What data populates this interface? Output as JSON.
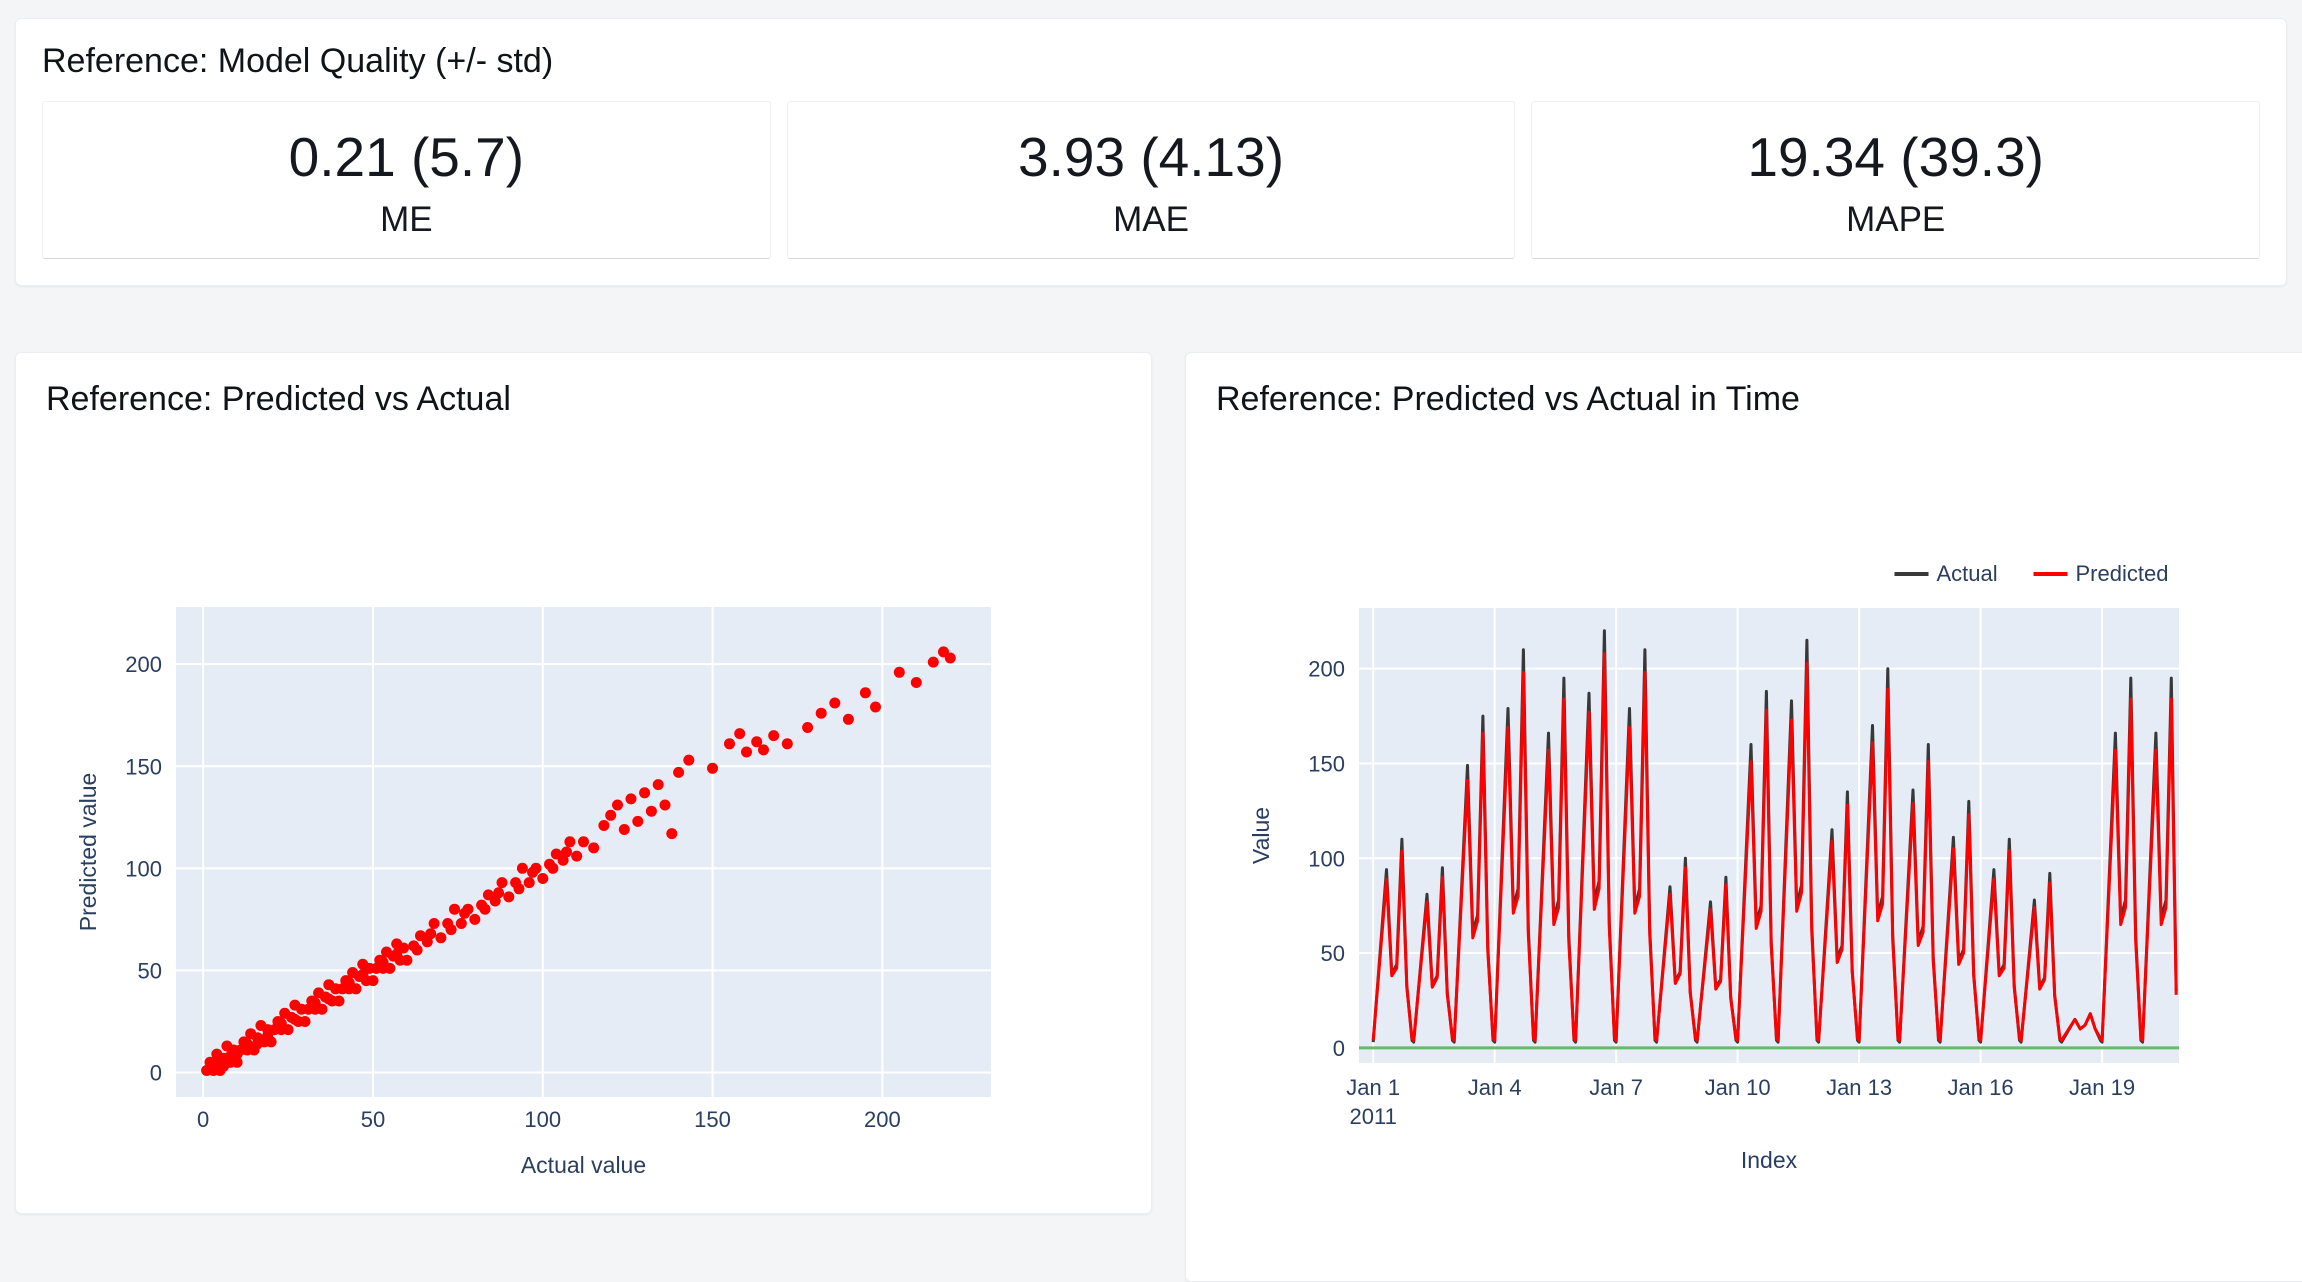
{
  "metrics_panel": {
    "title": "Reference: Model Quality (+/- std)",
    "items": [
      {
        "value": "0.21 (5.7)",
        "label": "ME"
      },
      {
        "value": "3.93 (4.13)",
        "label": "MAE"
      },
      {
        "value": "19.34 (39.3)",
        "label": "MAPE"
      }
    ]
  },
  "scatter_panel": {
    "title": "Reference: Predicted vs Actual"
  },
  "timeseries_panel": {
    "title": "Reference: Predicted vs Actual in Time"
  },
  "colors": {
    "plot_bg": "#e5ecf6",
    "grid": "#ffffff",
    "tick_text": "#2a3f5f",
    "marker_red": "#ff0000",
    "actual_line": "#383838",
    "predicted_line": "#ff0000",
    "zero_line_green": "#4caf50"
  },
  "chart_data": [
    {
      "type": "scatter",
      "title": "Reference: Predicted vs Actual",
      "xlabel": "Actual value",
      "ylabel": "Predicted value",
      "xlim": [
        -8,
        232
      ],
      "ylim": [
        -12,
        228
      ],
      "xticks": [
        0,
        50,
        100,
        150,
        200
      ],
      "yticks": [
        0,
        50,
        100,
        150,
        200
      ],
      "grid": true,
      "marker_color": "#ff0000",
      "points": [
        [
          1,
          1
        ],
        [
          2,
          5
        ],
        [
          2,
          2
        ],
        [
          3,
          1
        ],
        [
          4,
          9
        ],
        [
          4,
          4
        ],
        [
          5,
          1
        ],
        [
          6,
          7
        ],
        [
          6,
          3
        ],
        [
          7,
          13
        ],
        [
          8,
          5
        ],
        [
          8,
          8
        ],
        [
          9,
          11
        ],
        [
          10,
          5
        ],
        [
          10,
          9
        ],
        [
          11,
          11
        ],
        [
          12,
          15
        ],
        [
          13,
          11
        ],
        [
          13,
          14
        ],
        [
          14,
          19
        ],
        [
          15,
          11
        ],
        [
          16,
          17
        ],
        [
          16,
          14
        ],
        [
          17,
          23
        ],
        [
          18,
          15
        ],
        [
          19,
          21
        ],
        [
          19,
          18
        ],
        [
          20,
          15
        ],
        [
          21,
          21
        ],
        [
          22,
          25
        ],
        [
          23,
          21
        ],
        [
          23,
          24
        ],
        [
          24,
          29
        ],
        [
          25,
          21
        ],
        [
          26,
          27
        ],
        [
          27,
          33
        ],
        [
          27,
          26
        ],
        [
          28,
          25
        ],
        [
          29,
          31
        ],
        [
          30,
          25
        ],
        [
          31,
          31
        ],
        [
          32,
          35
        ],
        [
          33,
          31
        ],
        [
          33,
          34
        ],
        [
          34,
          39
        ],
        [
          35,
          31
        ],
        [
          36,
          37
        ],
        [
          37,
          43
        ],
        [
          37,
          36
        ],
        [
          38,
          35
        ],
        [
          39,
          41
        ],
        [
          40,
          35
        ],
        [
          41,
          41
        ],
        [
          42,
          45
        ],
        [
          43,
          41
        ],
        [
          43,
          44
        ],
        [
          44,
          49
        ],
        [
          45,
          41
        ],
        [
          46,
          47
        ],
        [
          47,
          53
        ],
        [
          47,
          48
        ],
        [
          48,
          45
        ],
        [
          49,
          51
        ],
        [
          50,
          45
        ],
        [
          51,
          51
        ],
        [
          52,
          55
        ],
        [
          53,
          51
        ],
        [
          53,
          54
        ],
        [
          54,
          59
        ],
        [
          55,
          51
        ],
        [
          56,
          57
        ],
        [
          57,
          63
        ],
        [
          57,
          58
        ],
        [
          58,
          55
        ],
        [
          59,
          61
        ],
        [
          60,
          55
        ],
        [
          62,
          62
        ],
        [
          63,
          60
        ],
        [
          64,
          67
        ],
        [
          66,
          64
        ],
        [
          67,
          68
        ],
        [
          68,
          73
        ],
        [
          70,
          66
        ],
        [
          72,
          73
        ],
        [
          73,
          70
        ],
        [
          74,
          80
        ],
        [
          76,
          73
        ],
        [
          77,
          78
        ],
        [
          78,
          80
        ],
        [
          80,
          75
        ],
        [
          82,
          82
        ],
        [
          83,
          80
        ],
        [
          84,
          87
        ],
        [
          86,
          84
        ],
        [
          87,
          88
        ],
        [
          88,
          93
        ],
        [
          90,
          86
        ],
        [
          92,
          93
        ],
        [
          93,
          90
        ],
        [
          94,
          100
        ],
        [
          96,
          93
        ],
        [
          97,
          98
        ],
        [
          98,
          100
        ],
        [
          100,
          95
        ],
        [
          102,
          102
        ],
        [
          103,
          100
        ],
        [
          104,
          107
        ],
        [
          106,
          104
        ],
        [
          107,
          108
        ],
        [
          108,
          113
        ],
        [
          110,
          106
        ],
        [
          112,
          113
        ],
        [
          115,
          110
        ],
        [
          118,
          121
        ],
        [
          120,
          126
        ],
        [
          122,
          131
        ],
        [
          124,
          119
        ],
        [
          126,
          134
        ],
        [
          128,
          123
        ],
        [
          130,
          137
        ],
        [
          132,
          128
        ],
        [
          134,
          141
        ],
        [
          136,
          131
        ],
        [
          138,
          117
        ],
        [
          140,
          147
        ],
        [
          143,
          153
        ],
        [
          150,
          149
        ],
        [
          155,
          161
        ],
        [
          158,
          166
        ],
        [
          160,
          157
        ],
        [
          163,
          162
        ],
        [
          165,
          158
        ],
        [
          168,
          165
        ],
        [
          172,
          161
        ],
        [
          178,
          169
        ],
        [
          182,
          176
        ],
        [
          186,
          181
        ],
        [
          190,
          173
        ],
        [
          195,
          186
        ],
        [
          198,
          179
        ],
        [
          205,
          196
        ],
        [
          210,
          191
        ],
        [
          215,
          201
        ],
        [
          218,
          206
        ],
        [
          220,
          203
        ]
      ]
    },
    {
      "type": "line",
      "title": "Reference: Predicted vs Actual in Time",
      "xlabel": "Index",
      "ylabel": "Value",
      "xlim": [
        -0.35,
        19.9
      ],
      "ylim": [
        -8,
        232
      ],
      "yticks": [
        0,
        50,
        100,
        150,
        200
      ],
      "xticks": [
        {
          "pos": 0,
          "label": "Jan 1",
          "sub": "2011"
        },
        {
          "pos": 3,
          "label": "Jan 4"
        },
        {
          "pos": 6,
          "label": "Jan 7"
        },
        {
          "pos": 9,
          "label": "Jan 10"
        },
        {
          "pos": 12,
          "label": "Jan 13"
        },
        {
          "pos": 15,
          "label": "Jan 16"
        },
        {
          "pos": 18,
          "label": "Jan 19"
        }
      ],
      "grid": true,
      "legend_position": "top-right",
      "zero_line_color": "#4caf50",
      "x": [
        0,
        0.33,
        0.46,
        0.58,
        0.71,
        0.83,
        0.96,
        1,
        1.33,
        1.46,
        1.58,
        1.71,
        1.83,
        1.96,
        2,
        2.33,
        2.46,
        2.58,
        2.71,
        2.83,
        2.96,
        3,
        3.33,
        3.46,
        3.58,
        3.71,
        3.83,
        3.96,
        4,
        4.33,
        4.46,
        4.58,
        4.71,
        4.83,
        4.96,
        5,
        5.33,
        5.46,
        5.58,
        5.71,
        5.83,
        5.96,
        6,
        6.33,
        6.46,
        6.58,
        6.71,
        6.83,
        6.96,
        7,
        7.33,
        7.46,
        7.58,
        7.71,
        7.83,
        7.96,
        8,
        8.33,
        8.46,
        8.58,
        8.71,
        8.83,
        8.96,
        9,
        9.33,
        9.46,
        9.58,
        9.71,
        9.83,
        9.96,
        10,
        10.33,
        10.46,
        10.58,
        10.71,
        10.83,
        10.96,
        11,
        11.33,
        11.46,
        11.58,
        11.71,
        11.83,
        11.96,
        12,
        12.33,
        12.46,
        12.58,
        12.71,
        12.83,
        12.96,
        13,
        13.33,
        13.46,
        13.58,
        13.71,
        13.83,
        13.96,
        14,
        14.33,
        14.46,
        14.58,
        14.71,
        14.83,
        14.96,
        15,
        15.33,
        15.46,
        15.58,
        15.71,
        15.83,
        15.96,
        16,
        16.33,
        16.46,
        16.58,
        16.71,
        16.83,
        16.96,
        17,
        17.33,
        17.46,
        17.58,
        17.71,
        17.83,
        17.96,
        18,
        18.33,
        18.46,
        18.58,
        18.71,
        18.83,
        18.96,
        19,
        19.33,
        19.46,
        19.58,
        19.71,
        19.83
      ],
      "series": [
        {
          "name": "Actual",
          "color": "#383838",
          "values": [
            3,
            94,
            39,
            44,
            110,
            33,
            4,
            3,
            81,
            33,
            38,
            95,
            29,
            4,
            3,
            149,
            61,
            70,
            175,
            53,
            4,
            3,
            179,
            74,
            84,
            210,
            63,
            4,
            3,
            166,
            68,
            78,
            195,
            59,
            4,
            3,
            187,
            77,
            88,
            220,
            66,
            4,
            3,
            179,
            74,
            84,
            210,
            63,
            4,
            3,
            85,
            35,
            40,
            100,
            30,
            4,
            3,
            77,
            32,
            36,
            90,
            27,
            4,
            3,
            160,
            66,
            75,
            188,
            56,
            4,
            3,
            183,
            75,
            86,
            215,
            65,
            4,
            3,
            115,
            47,
            54,
            135,
            41,
            4,
            3,
            170,
            70,
            80,
            200,
            60,
            4,
            3,
            136,
            56,
            64,
            160,
            48,
            4,
            3,
            111,
            46,
            52,
            130,
            39,
            4,
            3,
            94,
            39,
            44,
            110,
            33,
            4,
            3,
            78,
            32,
            37,
            92,
            28,
            4,
            3,
            15,
            10,
            12,
            18,
            10,
            4,
            3,
            166,
            68,
            78,
            195,
            59,
            4,
            3,
            166,
            68,
            78,
            195,
            30
          ]
        },
        {
          "name": "Predicted",
          "color": "#ff0000",
          "values": [
            4,
            89,
            38,
            42,
            104,
            32,
            5,
            4,
            77,
            32,
            37,
            90,
            28,
            5,
            4,
            141,
            58,
            67,
            166,
            51,
            5,
            4,
            169,
            71,
            80,
            198,
            60,
            5,
            4,
            157,
            65,
            74,
            184,
            56,
            5,
            4,
            177,
            73,
            84,
            208,
            63,
            5,
            4,
            169,
            71,
            80,
            198,
            60,
            5,
            4,
            81,
            34,
            39,
            95,
            29,
            5,
            4,
            73,
            31,
            35,
            86,
            26,
            5,
            4,
            151,
            63,
            72,
            178,
            54,
            5,
            4,
            173,
            72,
            82,
            203,
            62,
            5,
            4,
            109,
            45,
            52,
            128,
            40,
            5,
            4,
            161,
            67,
            76,
            189,
            57,
            5,
            4,
            129,
            54,
            61,
            151,
            46,
            5,
            4,
            105,
            44,
            50,
            123,
            38,
            5,
            4,
            89,
            38,
            42,
            104,
            32,
            5,
            4,
            74,
            31,
            36,
            87,
            27,
            5,
            4,
            15,
            10,
            12,
            18,
            10,
            5,
            4,
            157,
            65,
            74,
            184,
            56,
            5,
            4,
            157,
            65,
            74,
            184,
            28
          ]
        }
      ]
    }
  ]
}
